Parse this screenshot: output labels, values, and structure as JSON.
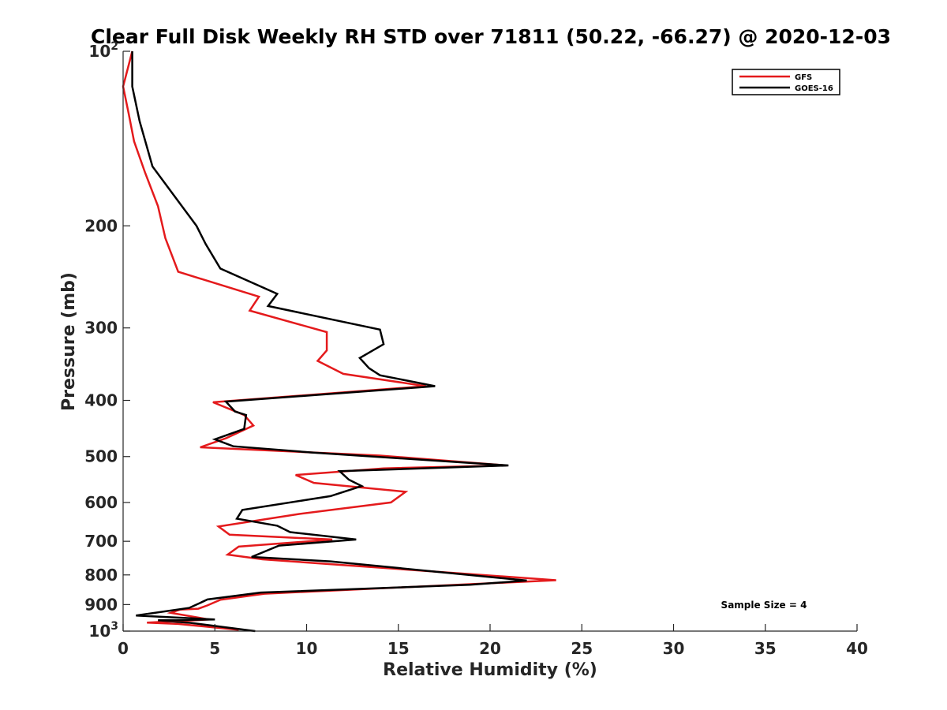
{
  "chart_data": {
    "type": "line",
    "title": "Clear Full Disk Weekly RH STD over 71811 (50.22, -66.27) @ 2020-12-03",
    "xlabel": "Relative Humidity (%)",
    "ylabel": "Pressure (mb)",
    "xlim": [
      0,
      40
    ],
    "ylim": [
      100,
      1000
    ],
    "yscale": "log",
    "y_reversed": true,
    "grid": false,
    "legend_position": "top-right",
    "x_ticks": [
      "0",
      "5",
      "10",
      "15",
      "20",
      "25",
      "30",
      "35",
      "40"
    ],
    "y_ticks": [
      {
        "base": "10",
        "exp": "2"
      },
      {
        "base": "200",
        "exp": ""
      },
      {
        "base": "300",
        "exp": ""
      },
      {
        "base": "400",
        "exp": ""
      },
      {
        "base": "500",
        "exp": ""
      },
      {
        "base": "600",
        "exp": ""
      },
      {
        "base": "700",
        "exp": ""
      },
      {
        "base": "800",
        "exp": ""
      },
      {
        "base": "900",
        "exp": ""
      },
      {
        "base": "10",
        "exp": "3"
      }
    ],
    "annotation": "Sample Size = 4",
    "series": [
      {
        "name": "GFS",
        "color": "#e41a1c",
        "points": [
          [
            0.5,
            100
          ],
          [
            0.0,
            115
          ],
          [
            0.3,
            128
          ],
          [
            0.6,
            143
          ],
          [
            1.2,
            162
          ],
          [
            1.9,
            185
          ],
          [
            2.3,
            210
          ],
          [
            3.0,
            240
          ],
          [
            7.4,
            265
          ],
          [
            6.9,
            280
          ],
          [
            11.1,
            305
          ],
          [
            11.1,
            328
          ],
          [
            10.6,
            342
          ],
          [
            12.0,
            360
          ],
          [
            16.5,
            378
          ],
          [
            4.9,
            403
          ],
          [
            6.6,
            424
          ],
          [
            7.1,
            442
          ],
          [
            5.6,
            465
          ],
          [
            4.2,
            482
          ],
          [
            14.0,
            498
          ],
          [
            20.9,
            518
          ],
          [
            14.2,
            524
          ],
          [
            9.4,
            538
          ],
          [
            10.4,
            555
          ],
          [
            15.4,
            575
          ],
          [
            14.6,
            600
          ],
          [
            9.6,
            628
          ],
          [
            5.2,
            660
          ],
          [
            5.8,
            682
          ],
          [
            11.4,
            695
          ],
          [
            6.3,
            715
          ],
          [
            5.7,
            738
          ],
          [
            7.6,
            752
          ],
          [
            23.6,
            817
          ],
          [
            7.7,
            862
          ],
          [
            5.3,
            883
          ],
          [
            4.6,
            903
          ],
          [
            4.1,
            915
          ],
          [
            3.1,
            918
          ],
          [
            2.6,
            930
          ],
          [
            4.7,
            955
          ],
          [
            1.3,
            967
          ],
          [
            3.0,
            972
          ],
          [
            6.3,
            995
          ]
        ]
      },
      {
        "name": "GOES-16",
        "color": "#000000",
        "points": [
          [
            0.5,
            100
          ],
          [
            0.5,
            115
          ],
          [
            0.9,
            132
          ],
          [
            1.6,
            158
          ],
          [
            4.0,
            200
          ],
          [
            4.5,
            215
          ],
          [
            5.3,
            237
          ],
          [
            8.4,
            262
          ],
          [
            7.9,
            275
          ],
          [
            14.0,
            302
          ],
          [
            14.2,
            320
          ],
          [
            12.9,
            338
          ],
          [
            13.4,
            352
          ],
          [
            14.0,
            362
          ],
          [
            17.0,
            378
          ],
          [
            5.6,
            402
          ],
          [
            6.1,
            418
          ],
          [
            6.7,
            424
          ],
          [
            6.6,
            448
          ],
          [
            5.0,
            467
          ],
          [
            6.0,
            480
          ],
          [
            10.3,
            492
          ],
          [
            21.0,
            518
          ],
          [
            11.8,
            530
          ],
          [
            12.3,
            548
          ],
          [
            13.0,
            562
          ],
          [
            11.3,
            585
          ],
          [
            6.5,
            618
          ],
          [
            6.2,
            640
          ],
          [
            8.4,
            658
          ],
          [
            9.1,
            675
          ],
          [
            12.7,
            695
          ],
          [
            8.5,
            712
          ],
          [
            7.0,
            745
          ],
          [
            11.3,
            758
          ],
          [
            22.0,
            818
          ],
          [
            18.9,
            832
          ],
          [
            7.5,
            858
          ],
          [
            4.6,
            882
          ],
          [
            4.0,
            900
          ],
          [
            3.6,
            912
          ],
          [
            0.7,
            940
          ],
          [
            5.0,
            955
          ],
          [
            1.9,
            958
          ],
          [
            3.7,
            968
          ],
          [
            7.2,
            1000
          ]
        ]
      }
    ]
  }
}
